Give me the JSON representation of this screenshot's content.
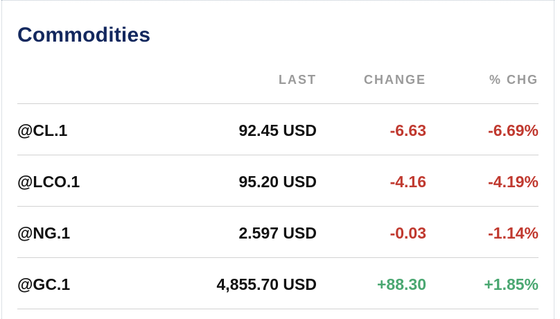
{
  "widget": {
    "title": "Commodities"
  },
  "table": {
    "columns": [
      "",
      "LAST",
      "CHANGE",
      "% CHG"
    ],
    "rows": [
      {
        "symbol": "@CL.1",
        "last": "92.45 USD",
        "change": "-6.63",
        "pct": "-6.69%",
        "direction": "down"
      },
      {
        "symbol": "@LCO.1",
        "last": "95.20 USD",
        "change": "-4.16",
        "pct": "-4.19%",
        "direction": "down"
      },
      {
        "symbol": "@NG.1",
        "last": "2.597 USD",
        "change": "-0.03",
        "pct": "-1.14%",
        "direction": "down"
      },
      {
        "symbol": "@GC.1",
        "last": "4,855.70 USD",
        "change": "+88.30",
        "pct": "+1.85%",
        "direction": "up"
      }
    ]
  },
  "colors": {
    "title": "#13285e",
    "negative": "#c0392f",
    "positive": "#4aa771",
    "header": "#9a9a9a",
    "divider": "#d2d2d2"
  }
}
